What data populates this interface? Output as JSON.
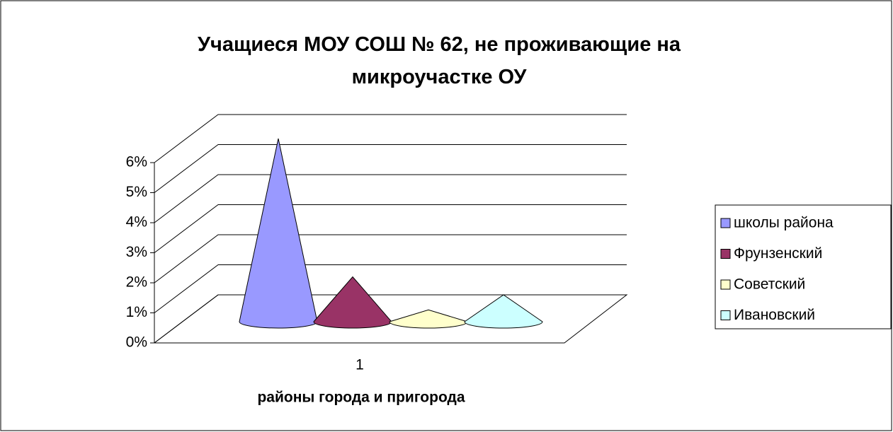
{
  "chart_data": {
    "type": "cone",
    "title": "Учащиеся МОУ СОШ № 62, не проживающие на микроучастке ОУ",
    "x_label": "районы города и пригорода",
    "categories": [
      "1"
    ],
    "series": [
      {
        "name": "школы района",
        "color": "#9999ff",
        "values": [
          6.0
        ]
      },
      {
        "name": "Фрунзенский",
        "color": "#993366",
        "values": [
          1.4
        ]
      },
      {
        "name": "Советский",
        "color": "#ffffcc",
        "values": [
          0.3
        ]
      },
      {
        "name": "Ивановский",
        "color": "#ccffff",
        "values": [
          0.8
        ]
      }
    ],
    "ylim": [
      0,
      6
    ],
    "yticks": [
      {
        "value": 0,
        "label": "0%"
      },
      {
        "value": 1,
        "label": "1%"
      },
      {
        "value": 2,
        "label": "2%"
      },
      {
        "value": 3,
        "label": "3%"
      },
      {
        "value": 4,
        "label": "4%"
      },
      {
        "value": 5,
        "label": "5%"
      },
      {
        "value": 6,
        "label": "6%"
      }
    ],
    "grid": true,
    "legend": "right"
  }
}
